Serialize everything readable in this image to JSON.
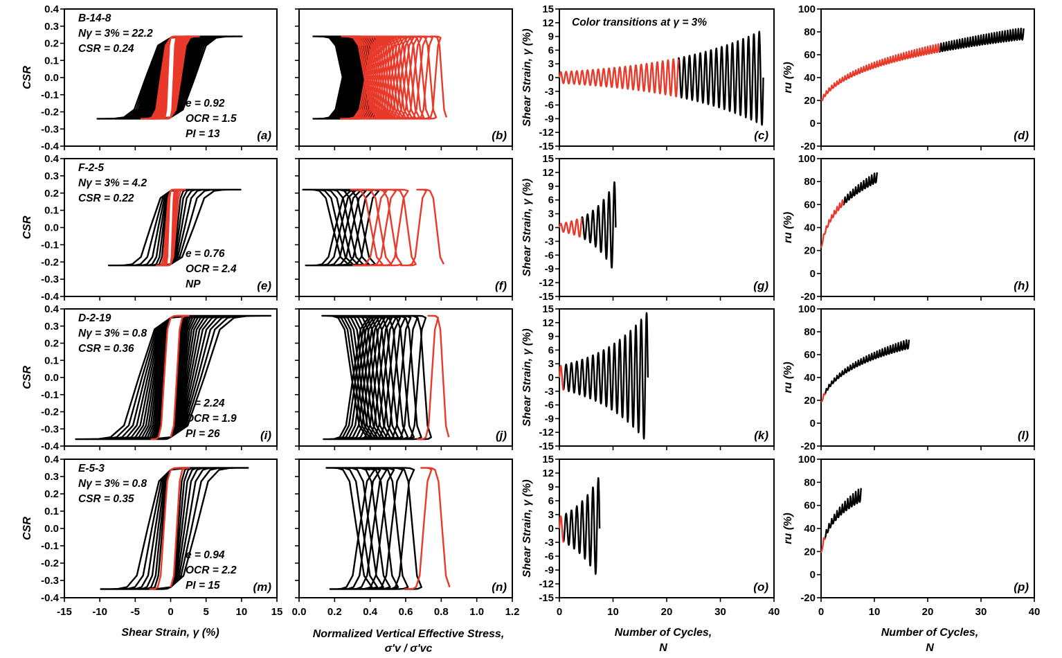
{
  "figure": {
    "xlabels": {
      "col0": "Shear Strain, γ (%)",
      "col1_line1": "Normalized Vertical Effective Stress,",
      "col1_line2": "σ'v / σ'vc",
      "col2_line1": "Number of Cycles,",
      "col2_line2": "N",
      "col3_line1": "Number of Cycles,",
      "col3_line2": "N"
    },
    "ylabels": {
      "csr": "CSR",
      "strain": "Shear Strain, γ (%)",
      "ru": "ru (%)"
    },
    "transition_note": "Color transitions at γ = 3%",
    "colors": {
      "pre_transition": "#e8392a",
      "post_transition": "#000000"
    },
    "rows": [
      {
        "specimen": "B-14-8",
        "n_line": "Nγ = 3% = 22.2",
        "csr_line": "CSR = 0.24",
        "e_line": "e = 0.92",
        "ocr_line": "OCR = 1.5",
        "pi_line": "PI = 13",
        "panel_labels": [
          "(a)",
          "(b)",
          "(c)",
          "(d)"
        ]
      },
      {
        "specimen": "F-2-5",
        "n_line": "Nγ = 3% = 4.2",
        "csr_line": "CSR = 0.22",
        "e_line": "e = 0.76",
        "ocr_line": "OCR = 2.4",
        "pi_line": "NP",
        "panel_labels": [
          "(e)",
          "(f)",
          "(g)",
          "(h)"
        ]
      },
      {
        "specimen": "D-2-19",
        "n_line": "Nγ = 3% = 0.8",
        "csr_line": "CSR = 0.36",
        "e_line": "e = 2.24",
        "ocr_line": "OCR = 1.9",
        "pi_line": "PI = 26",
        "panel_labels": [
          "(i)",
          "(j)",
          "(k)",
          "(l)"
        ]
      },
      {
        "specimen": "E-5-3",
        "n_line": "Nγ = 3% = 0.8",
        "csr_line": "CSR = 0.35",
        "e_line": "e = 0.94",
        "ocr_line": "OCR = 2.2",
        "pi_line": "PI = 15",
        "panel_labels": [
          "(m)",
          "(n)",
          "(o)",
          "(p)"
        ]
      }
    ]
  },
  "chart_data": [
    {
      "type": "line",
      "panel": "a",
      "xlabel": "Shear Strain, γ (%)",
      "ylabel": "CSR",
      "xlim": [
        -15,
        15
      ],
      "ylim": [
        -0.4,
        0.4
      ],
      "xticks": [
        "-15",
        "-10",
        "-5",
        "0",
        "5",
        "10",
        "15"
      ],
      "yticks": [
        "-0.4",
        "-0.3",
        "-0.2",
        "-0.1",
        "0.0",
        "0.1",
        "0.2",
        "0.3",
        "0.4"
      ],
      "csr": 0.24,
      "transition_cycle": 22.2,
      "total_cycles": 38,
      "strain_amp_start": 1.2,
      "strain_amp_end": 10.5,
      "grid": false
    },
    {
      "type": "line",
      "panel": "b",
      "xlabel": "Normalized Vertical Effective Stress, σ'v / σ'vc",
      "ylabel": "",
      "xlim": [
        0.0,
        1.2
      ],
      "ylim": [
        -0.4,
        0.4
      ],
      "xticks": [
        "0.0",
        "0.2",
        "0.4",
        "0.6",
        "0.8",
        "1.0",
        "1.2"
      ],
      "csr": 0.24,
      "stress_min_end": 0.08,
      "grid": false
    },
    {
      "type": "line",
      "panel": "c",
      "xlabel": "Number of Cycles, N",
      "ylabel": "Shear Strain, γ (%)",
      "xlim": [
        0,
        40
      ],
      "ylim": [
        -15,
        15
      ],
      "xticks": [
        "0",
        "10",
        "20",
        "30",
        "40"
      ],
      "yticks": [
        "-15",
        "-12",
        "-9",
        "-6",
        "-3",
        "0",
        "3",
        "6",
        "9",
        "12",
        "15"
      ],
      "transition_cycle": 22.2,
      "total_cycles": 38,
      "strain_amp_start": 1.2,
      "strain_amp_end": 10.5,
      "grid": false
    },
    {
      "type": "line",
      "panel": "d",
      "xlabel": "Number of Cycles, N",
      "ylabel": "ru (%)",
      "xlim": [
        0,
        40
      ],
      "ylim": [
        -20,
        100
      ],
      "xticks": [
        "0",
        "10",
        "20",
        "30",
        "40"
      ],
      "yticks": [
        "-20",
        "0",
        "20",
        "40",
        "60",
        "80",
        "100"
      ],
      "transition_cycle": 22.2,
      "total_cycles": 38,
      "ru_end_mean": 83,
      "ru_end_amp": 10,
      "grid": false
    },
    {
      "type": "line",
      "panel": "e",
      "xlim": [
        -15,
        15
      ],
      "ylim": [
        -0.4,
        0.4
      ],
      "csr": 0.22,
      "transition_cycle": 4.2,
      "total_cycles": 10.5,
      "strain_amp_start": 0.8,
      "strain_amp_end": 10.5,
      "grid": false
    },
    {
      "type": "line",
      "panel": "f",
      "xlim": [
        0.0,
        1.2
      ],
      "ylim": [
        -0.4,
        0.4
      ],
      "csr": 0.22,
      "stress_min_end": 0.02,
      "grid": false
    },
    {
      "type": "line",
      "panel": "g",
      "xlim": [
        0,
        40
      ],
      "ylim": [
        -15,
        15
      ],
      "transition_cycle": 4.2,
      "total_cycles": 10.5,
      "strain_amp_start": 0.8,
      "strain_amp_end": 10.5,
      "grid": false
    },
    {
      "type": "line",
      "panel": "h",
      "xlim": [
        0,
        40
      ],
      "ylim": [
        -20,
        100
      ],
      "transition_cycle": 4.2,
      "total_cycles": 10.5,
      "ru_end_mean": 88,
      "ru_end_amp": 9,
      "grid": false
    },
    {
      "type": "line",
      "panel": "i",
      "xlim": [
        -15,
        15
      ],
      "ylim": [
        -0.4,
        0.4
      ],
      "csr": 0.36,
      "transition_cycle": 0.8,
      "total_cycles": 16.5,
      "strain_amp_start": 2.5,
      "strain_amp_end": 14.5,
      "grid": false
    },
    {
      "type": "line",
      "panel": "j",
      "xlim": [
        0.0,
        1.2
      ],
      "ylim": [
        -0.4,
        0.4
      ],
      "csr": 0.36,
      "stress_min_end": 0.13,
      "grid": false
    },
    {
      "type": "line",
      "panel": "k",
      "xlim": [
        0,
        40
      ],
      "ylim": [
        -15,
        15
      ],
      "transition_cycle": 0.8,
      "total_cycles": 16.5,
      "strain_amp_start": 2.5,
      "strain_amp_end": 14.5,
      "grid": false
    },
    {
      "type": "line",
      "panel": "l",
      "xlim": [
        0,
        40
      ],
      "ylim": [
        -20,
        100
      ],
      "transition_cycle": 0.8,
      "total_cycles": 16.5,
      "ru_end_mean": 73,
      "ru_end_amp": 8,
      "grid": false
    },
    {
      "type": "line",
      "panel": "m",
      "xlim": [
        -15,
        15
      ],
      "ylim": [
        -0.4,
        0.4
      ],
      "csr": 0.35,
      "transition_cycle": 0.8,
      "total_cycles": 7.5,
      "strain_amp_start": 2.5,
      "strain_amp_end": 11.5,
      "grid": false
    },
    {
      "type": "line",
      "panel": "n",
      "xlim": [
        0.0,
        1.2
      ],
      "ylim": [
        -0.4,
        0.4
      ],
      "csr": 0.35,
      "stress_min_end": 0.15,
      "grid": false
    },
    {
      "type": "line",
      "panel": "o",
      "xlim": [
        0,
        40
      ],
      "ylim": [
        -15,
        15
      ],
      "transition_cycle": 0.8,
      "total_cycles": 7.5,
      "strain_amp_start": 2.5,
      "strain_amp_end": 11.5,
      "grid": false
    },
    {
      "type": "line",
      "panel": "p",
      "xlim": [
        0,
        40
      ],
      "ylim": [
        -20,
        100
      ],
      "transition_cycle": 0.8,
      "total_cycles": 7.5,
      "ru_end_mean": 75,
      "ru_end_amp": 12,
      "grid": false
    }
  ]
}
